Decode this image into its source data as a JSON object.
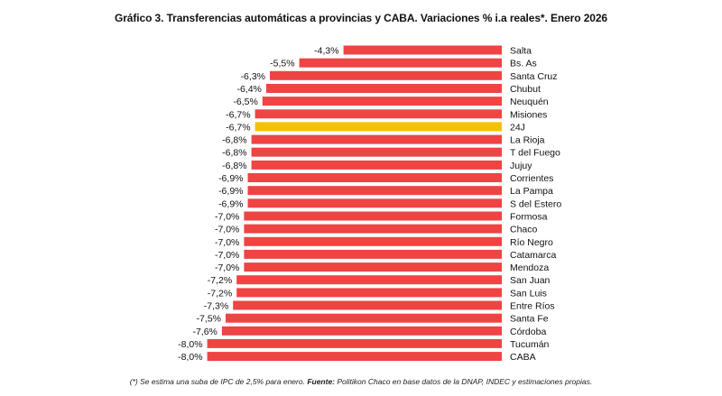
{
  "chart_data": {
    "type": "bar",
    "orientation": "horizontal",
    "title": "Gráfico 3. Transferencias automáticas a provincias y CABA. Variaciones % i.a reales*. Enero 2026",
    "categories": [
      "Salta",
      "Bs. As",
      "Santa Cruz",
      "Chubut",
      "Neuquén",
      "Misiones",
      "24J",
      "La Rioja",
      "T del Fuego",
      "Jujuy",
      "Corrientes",
      "La Pampa",
      "S del Estero",
      "Formosa",
      "Chaco",
      "Río Negro",
      "Catamarca",
      "Mendoza",
      "San Juan",
      "San Luis",
      "Entre Ríos",
      "Santa Fe",
      "Córdoba",
      "Tucumán",
      "CABA"
    ],
    "values": [
      -4.3,
      -5.5,
      -6.3,
      -6.4,
      -6.5,
      -6.7,
      -6.7,
      -6.8,
      -6.8,
      -6.8,
      -6.9,
      -6.9,
      -6.9,
      -7.0,
      -7.0,
      -7.0,
      -7.0,
      -7.0,
      -7.2,
      -7.2,
      -7.3,
      -7.5,
      -7.6,
      -8.0,
      -8.0
    ],
    "value_labels": [
      "-4,3%",
      "-5,5%",
      "-6,3%",
      "-6,4%",
      "-6,5%",
      "-6,7%",
      "-6,7%",
      "-6,8%",
      "-6,8%",
      "-6,8%",
      "-6,9%",
      "-6,9%",
      "-6,9%",
      "-7,0%",
      "-7,0%",
      "-7,0%",
      "-7,0%",
      "-7,0%",
      "-7,2%",
      "-7,2%",
      "-7,3%",
      "-7,5%",
      "-7,6%",
      "-8,0%",
      "-8,0%"
    ],
    "highlight_category": "24J",
    "colors": {
      "bar": "#ee4444",
      "highlight": "#f2c200",
      "text": "#111111"
    },
    "grid": false,
    "legend": "none"
  },
  "footnote": {
    "note": "(*) Se estima una suba de IPC de 2,5% para enero. ",
    "source_label": "Fuente:",
    "source_text": " Politikon Chaco en base datos de la DNAP, INDEC y estimaciones propias."
  }
}
